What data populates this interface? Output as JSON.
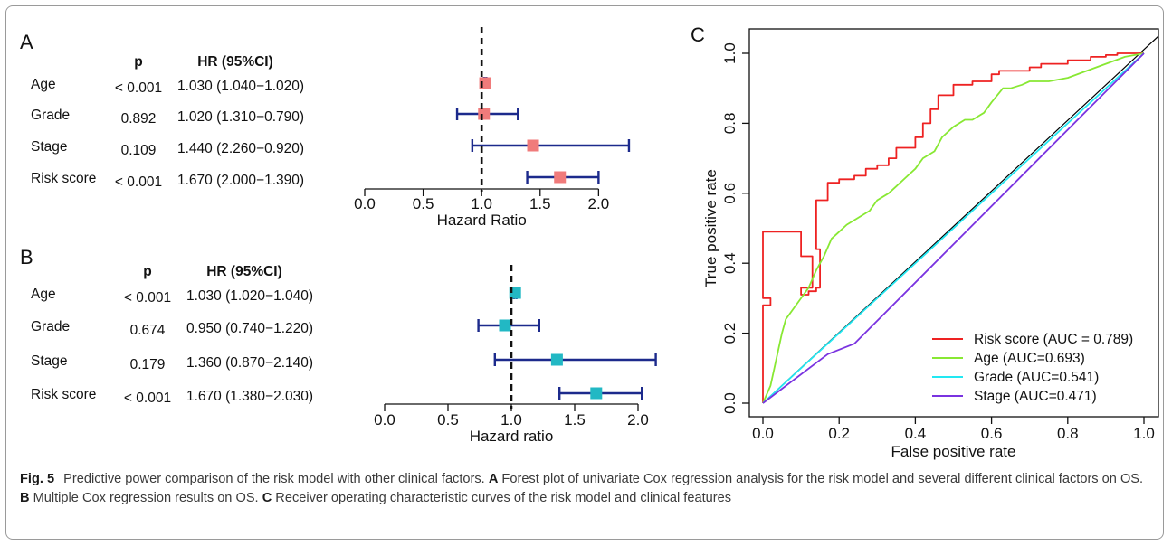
{
  "chart_data": [
    {
      "panel": "A",
      "type": "forest",
      "col_p": "p",
      "col_hr": "HR (95%CI)",
      "xlabel": "Hazard Ratio",
      "xlim": [
        0,
        2.33
      ],
      "xticks": [
        "0.0",
        "0.5",
        "1.0",
        "1.5",
        "2.0"
      ],
      "ref_line": 1.0,
      "marker_color": "#f07b7b",
      "rows": [
        {
          "label": "Age",
          "p": "< 0.001",
          "hr_text": "1.030 (1.040−1.020)",
          "hr": 1.03,
          "lo": 1.02,
          "hi": 1.04
        },
        {
          "label": "Grade",
          "p": "0.892",
          "hr_text": "1.020 (1.310−0.790)",
          "hr": 1.02,
          "lo": 0.79,
          "hi": 1.31
        },
        {
          "label": "Stage",
          "p": "0.109",
          "hr_text": "1.440 (2.260−0.920)",
          "hr": 1.44,
          "lo": 0.92,
          "hi": 2.26
        },
        {
          "label": "Risk score",
          "p": "< 0.001",
          "hr_text": "1.670 (2.000−1.390)",
          "hr": 1.67,
          "lo": 1.39,
          "hi": 2.0
        }
      ]
    },
    {
      "panel": "B",
      "type": "forest",
      "col_p": "p",
      "col_hr": "HR (95%CI)",
      "xlabel": "Hazard ratio",
      "xlim": [
        0,
        2.2
      ],
      "xticks": [
        "0.0",
        "0.5",
        "1.0",
        "1.5",
        "2.0"
      ],
      "ref_line": 1.0,
      "marker_color": "#22b8c4",
      "rows": [
        {
          "label": "Age",
          "p": "< 0.001",
          "hr_text": "1.030 (1.020−1.040)",
          "hr": 1.03,
          "lo": 1.02,
          "hi": 1.04
        },
        {
          "label": "Grade",
          "p": "0.674",
          "hr_text": "0.950 (0.740−1.220)",
          "hr": 0.95,
          "lo": 0.74,
          "hi": 1.22
        },
        {
          "label": "Stage",
          "p": "0.179",
          "hr_text": "1.360 (0.870−2.140)",
          "hr": 1.36,
          "lo": 0.87,
          "hi": 2.14
        },
        {
          "label": "Risk score",
          "p": "< 0.001",
          "hr_text": "1.670 (1.380−2.030)",
          "hr": 1.67,
          "lo": 1.38,
          "hi": 2.03
        }
      ]
    },
    {
      "panel": "C",
      "type": "line",
      "xlabel": "False positive rate",
      "ylabel": "True positive rate",
      "xlim": [
        0,
        1
      ],
      "ylim": [
        0,
        1
      ],
      "xticks": [
        "0.0",
        "0.2",
        "0.4",
        "0.6",
        "0.8",
        "1.0"
      ],
      "yticks": [
        "0.0",
        "0.2",
        "0.4",
        "0.6",
        "0.8",
        "1.0"
      ],
      "legend_position": "bottom-right",
      "diagonal_color": "#000000",
      "series": [
        {
          "name": "Risk score (AUC = 0.789)",
          "color": "#ee2222",
          "x": [
            0,
            0,
            0.02,
            0.02,
            0,
            0,
            0.1,
            0.1,
            0.13,
            0.13,
            0.1,
            0.1,
            0.12,
            0.12,
            0.14,
            0.14,
            0.15,
            0.15,
            0.14,
            0.14,
            0.17,
            0.17,
            0.2,
            0.2,
            0.24,
            0.24,
            0.27,
            0.27,
            0.3,
            0.3,
            0.33,
            0.33,
            0.35,
            0.35,
            0.4,
            0.4,
            0.42,
            0.42,
            0.44,
            0.44,
            0.46,
            0.46,
            0.5,
            0.5,
            0.55,
            0.55,
            0.6,
            0.6,
            0.62,
            0.62,
            0.7,
            0.7,
            0.73,
            0.73,
            0.8,
            0.8,
            0.86,
            0.86,
            0.9,
            0.9,
            0.93,
            0.93,
            1.0
          ],
          "y": [
            0,
            0.28,
            0.28,
            0.3,
            0.3,
            0.49,
            0.49,
            0.42,
            0.42,
            0.33,
            0.33,
            0.31,
            0.31,
            0.32,
            0.32,
            0.33,
            0.33,
            0.44,
            0.44,
            0.58,
            0.58,
            0.63,
            0.63,
            0.64,
            0.64,
            0.65,
            0.65,
            0.67,
            0.67,
            0.68,
            0.68,
            0.7,
            0.7,
            0.73,
            0.73,
            0.76,
            0.76,
            0.8,
            0.8,
            0.84,
            0.84,
            0.88,
            0.88,
            0.91,
            0.91,
            0.92,
            0.92,
            0.94,
            0.94,
            0.95,
            0.95,
            0.96,
            0.96,
            0.97,
            0.97,
            0.98,
            0.98,
            0.99,
            0.99,
            0.995,
            0.995,
            1.0,
            1.0
          ]
        },
        {
          "name": "Age (AUC=0.693)",
          "color": "#88e833",
          "x": [
            0,
            0.02,
            0.03,
            0.04,
            0.05,
            0.06,
            0.08,
            0.1,
            0.12,
            0.14,
            0.16,
            0.18,
            0.2,
            0.22,
            0.25,
            0.28,
            0.3,
            0.33,
            0.35,
            0.38,
            0.4,
            0.42,
            0.45,
            0.47,
            0.5,
            0.53,
            0.55,
            0.58,
            0.6,
            0.63,
            0.65,
            0.68,
            0.7,
            0.75,
            0.8,
            0.85,
            0.9,
            0.95,
            1.0
          ],
          "y": [
            0,
            0.05,
            0.1,
            0.15,
            0.2,
            0.24,
            0.27,
            0.3,
            0.33,
            0.38,
            0.42,
            0.47,
            0.49,
            0.51,
            0.53,
            0.55,
            0.58,
            0.6,
            0.62,
            0.65,
            0.67,
            0.7,
            0.72,
            0.76,
            0.79,
            0.81,
            0.81,
            0.83,
            0.86,
            0.9,
            0.9,
            0.91,
            0.92,
            0.92,
            0.93,
            0.95,
            0.97,
            0.99,
            1.0
          ]
        },
        {
          "name": "Grade (AUC=0.541)",
          "color": "#22e8f2",
          "x": [
            0,
            1.0
          ],
          "y": [
            0,
            1.0
          ]
        },
        {
          "name": "Stage (AUC=0.471)",
          "color": "#7a33e0",
          "x": [
            0,
            0.17,
            0.24,
            1.0
          ],
          "y": [
            0,
            0.14,
            0.17,
            1.0
          ]
        }
      ]
    }
  ],
  "caption": {
    "fig_label": "Fig. 5",
    "intro": "Predictive power comparison of the risk model with other clinical factors.",
    "a_label": "A",
    "a_text": "Forest plot of univariate Cox regression analysis for the risk model and several different clinical factors on OS.",
    "b_label": "B",
    "b_text": "Multiple Cox regression results on OS.",
    "c_label": "C",
    "c_text": "Receiver operating characteristic curves of the risk model and clinical features"
  }
}
